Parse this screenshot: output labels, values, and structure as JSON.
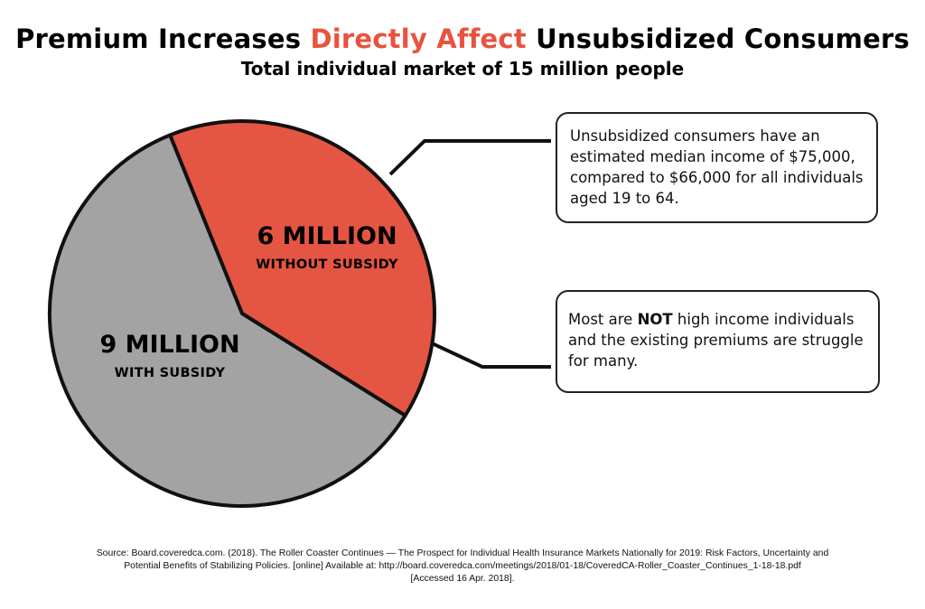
{
  "header": {
    "title_part1": "Premium Increases ",
    "title_accent": "Directly Affect",
    "title_part2": " Unsubsidized Consumers",
    "subtitle": "Total individual market of 15 million people"
  },
  "colors": {
    "accent": "#e8533f",
    "with_subsidy": "#a3a3a3",
    "without_subsidy": "#e55543",
    "outline": "#111111"
  },
  "chart_data": {
    "type": "pie",
    "title": "Premium Increases Directly Affect Unsubsidized Consumers",
    "subtitle": "Total individual market of 15 million people",
    "unit": "million people",
    "total": 15,
    "slices": [
      {
        "value": 6,
        "value_label": "6 MILLION",
        "category_label": "WITHOUT SUBSIDY",
        "color": "#e55543"
      },
      {
        "value": 9,
        "value_label": "9 MILLION",
        "category_label": "WITH SUBSIDY",
        "color": "#a3a3a3"
      }
    ],
    "legend": "none"
  },
  "callouts": {
    "top": "Unsubsidized consumers have an estimated median income of $75,000, compared to $66,000 for all individuals aged 19 to 64.",
    "bottom_before": "Most are ",
    "bottom_bold": "NOT",
    "bottom_after": " high income individuals and the existing premiums are struggle for many."
  },
  "source": {
    "line1": "Source: Board.coveredca.com. (2018). The Roller Coaster Continues — The Prospect for Individual Health Insurance Markets Nationally for 2019: Risk Factors, Uncertainty and",
    "line2": "Potential Benefits of Stabilizing Policies. [online] Available at: http://board.coveredca.com/meetings/2018/01-18/CoveredCA-Roller_Coaster_Continues_1-18-18.pdf",
    "line3": "[Accessed 16 Apr. 2018]."
  }
}
